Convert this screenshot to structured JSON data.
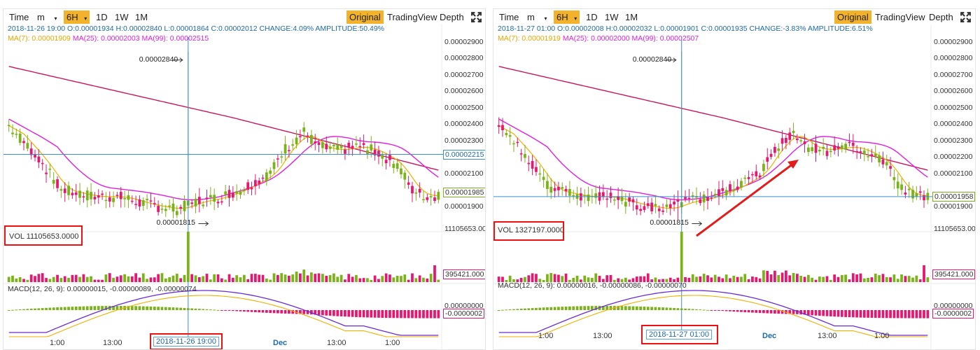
{
  "toolbar": {
    "time_label": "Time",
    "minute_label": "m",
    "interval_active": "6H",
    "interval_1d": "1D",
    "interval_1w": "1W",
    "interval_1m": "1M",
    "view_original": "Original",
    "view_tradingview": "TradingView",
    "view_depth": "Depth"
  },
  "colors": {
    "up": "#7ab317",
    "down": "#e5176e",
    "ma7": "#f0b000",
    "ma25": "#e020e0",
    "ma99": "#c8155e",
    "macd": "#6a2bd8",
    "signal": "#f0b000",
    "crosshair": "#3a8fd0",
    "annotation": "#e11c1c"
  },
  "chart_data": [
    {
      "type": "candlestick",
      "ohlc_text": "2018-11-26 19:00  O:0.00001934 H:0.00002840 L:0.00001864 C:0.00002012 CHANGE:4.09% AMPLITUDE:50.49%",
      "ma7_text": "MA(7): 0.00001909",
      "ma25_text": "MA(25): 0.00002003",
      "ma99_text": "MA(99): 0.00002515",
      "y_ticks": [
        "0.00002900",
        "0.00002800",
        "0.00002700",
        "0.00002600",
        "0.00002500",
        "0.00002400",
        "0.00002300",
        "0.00002200",
        "0.00002100",
        "0.00001900"
      ],
      "ylim": [
        1.8e-05,
        2.92e-05
      ],
      "current_price_tag": "0.00001985",
      "crosshair_price_tag": "0.00002215",
      "high_annotation": "0.00002840",
      "low_annotation": "0.00001815",
      "volume_label": "VOL 11105653.0000",
      "volume_axis_max": "11105653.00",
      "volume_current_tag": "395421.000",
      "macd_label": "MACD(12, 26, 9): 0.00000015, -0.00000089, -0.00000074",
      "macd_axis_top": "0.00000000",
      "macd_tag": "-0.0000002",
      "crosshair_date": "2018-11-26 19:00",
      "x_ticks": [
        "1:00",
        "13:00",
        "Dec",
        "13:00",
        "1:00"
      ],
      "month_tick": "Dec"
    },
    {
      "type": "candlestick",
      "ohlc_text": "2018-11-27 01:00  O:0.00002008 H:0.00002032 L:0.00001901 C:0.00001935 CHANGE:-3.83% AMPLITUDE:6.51%",
      "ma7_text": "MA(7): 0.00001919",
      "ma25_text": "MA(25): 0.00002000",
      "ma99_text": "MA(99): 0.00002507",
      "y_ticks": [
        "0.00002900",
        "0.00002800",
        "0.00002700",
        "0.00002600",
        "0.00002500",
        "0.00002400",
        "0.00002300",
        "0.00002200",
        "0.00002100",
        "0.00001900"
      ],
      "ylim": [
        1.8e-05,
        2.92e-05
      ],
      "current_price_tag": "0.00001958",
      "crosshair_price_tag": "",
      "high_annotation": "0.00002840",
      "low_annotation": "0.00001815",
      "volume_label": "VOL 1327197.0000",
      "volume_axis_max": "11105653.00",
      "volume_current_tag": "395421.000",
      "macd_label": "MACD(12, 26, 9): 0.00000016, -0.00000086, -0.00000070",
      "macd_axis_top": "0.00000000",
      "macd_tag": "-0.0000002",
      "crosshair_date": "2018-11-27 01:00",
      "x_ticks": [
        "1:00",
        "13:00",
        "Dec",
        "13:00",
        "1:00"
      ],
      "month_tick": "Dec"
    }
  ]
}
